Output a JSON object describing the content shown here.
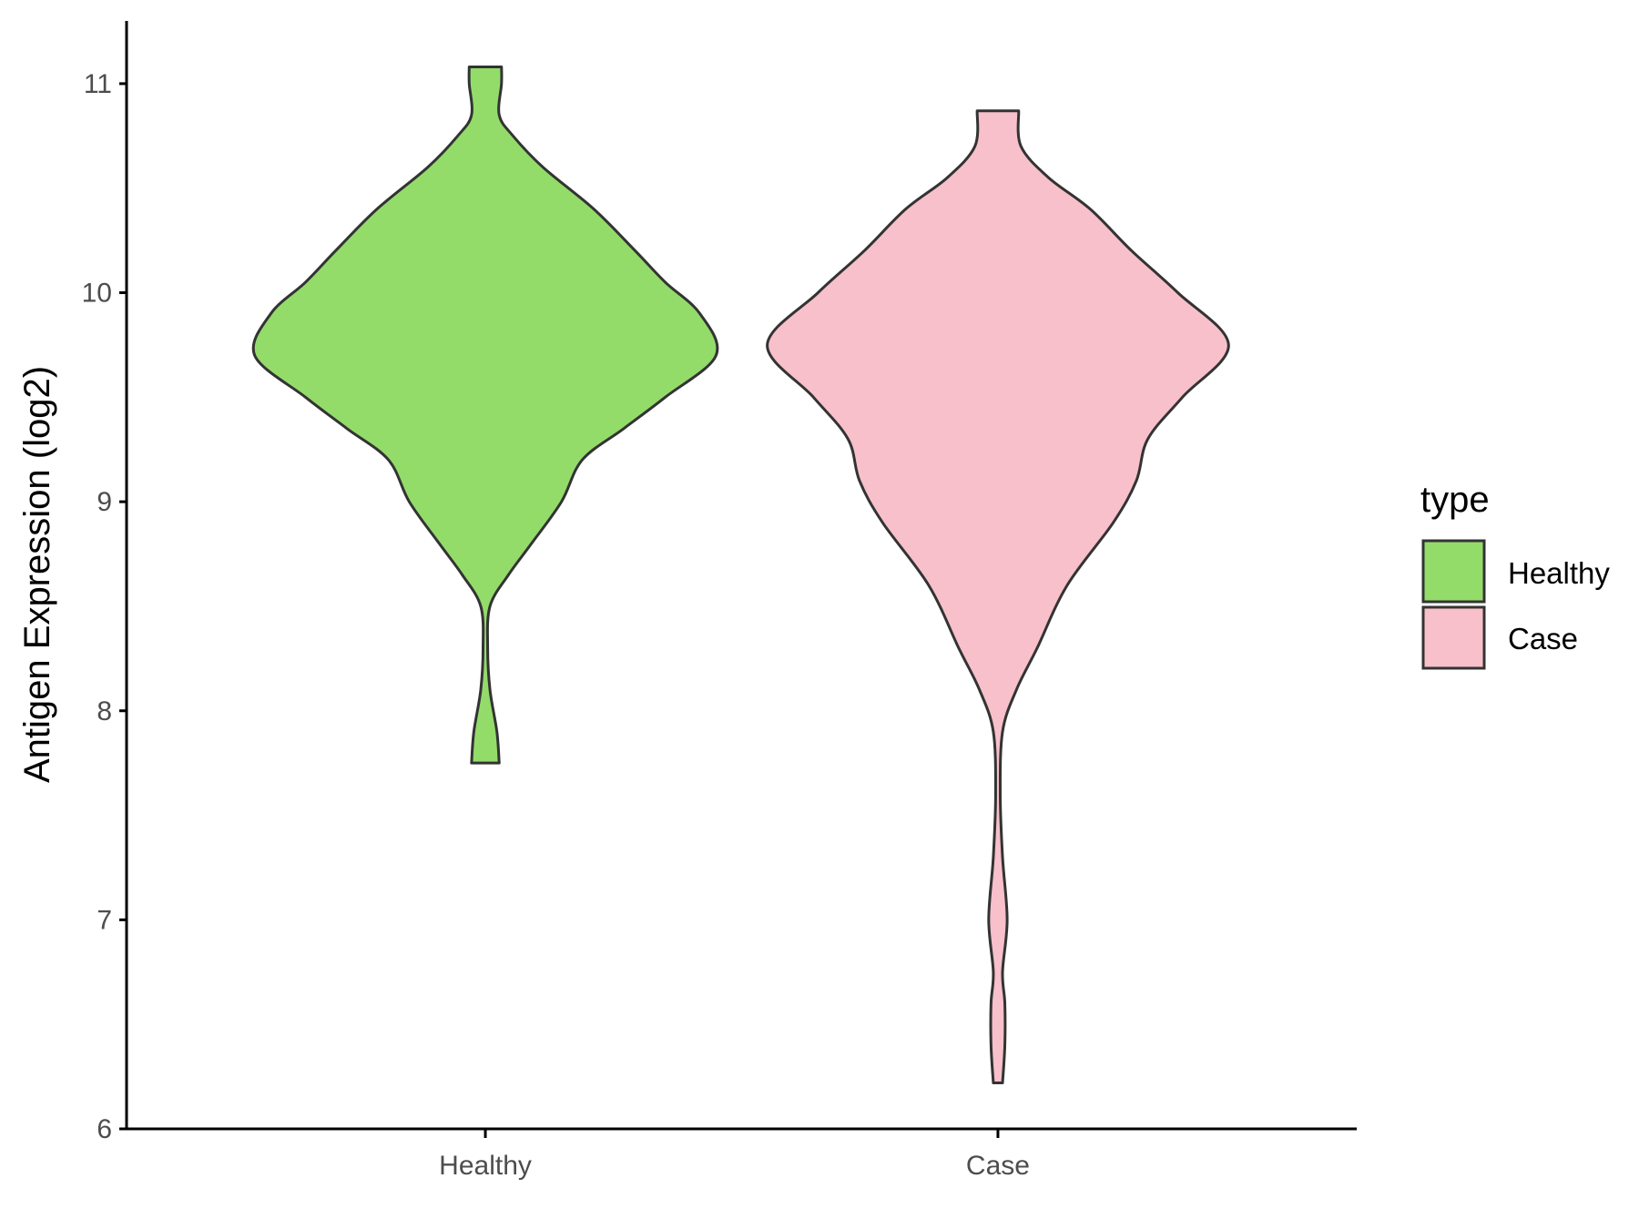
{
  "chart_data": {
    "type": "violin",
    "xlabel": "",
    "ylabel": "Antigen Expression (log2)",
    "ylim": [
      6,
      11.3
    ],
    "yticks": [
      "6",
      "7",
      "8",
      "9",
      "10",
      "11"
    ],
    "categories": [
      "Healthy",
      "Case"
    ],
    "grid": false,
    "legend": {
      "title": "type",
      "position": "right",
      "entries": [
        {
          "label": "Healthy",
          "color": "#93dc6a"
        },
        {
          "label": "Case",
          "color": "#f7c0cb"
        }
      ]
    },
    "series": [
      {
        "category": "Healthy",
        "color": "#93dc6a",
        "y_min": 7.75,
        "y_max": 11.08,
        "density_profile": [
          [
            7.75,
            0.06
          ],
          [
            7.9,
            0.05
          ],
          [
            8.1,
            0.02
          ],
          [
            8.3,
            0.01
          ],
          [
            8.5,
            0.02
          ],
          [
            8.65,
            0.1
          ],
          [
            8.8,
            0.2
          ],
          [
            9.0,
            0.33
          ],
          [
            9.2,
            0.42
          ],
          [
            9.35,
            0.6
          ],
          [
            9.5,
            0.78
          ],
          [
            9.7,
            1.0
          ],
          [
            9.9,
            0.93
          ],
          [
            10.05,
            0.78
          ],
          [
            10.2,
            0.65
          ],
          [
            10.4,
            0.47
          ],
          [
            10.6,
            0.25
          ],
          [
            10.75,
            0.12
          ],
          [
            10.85,
            0.06
          ],
          [
            11.0,
            0.07
          ],
          [
            11.08,
            0.07
          ]
        ]
      },
      {
        "category": "Case",
        "color": "#f7c0cb",
        "y_min": 6.22,
        "y_max": 10.87,
        "density_profile": [
          [
            6.22,
            0.02
          ],
          [
            6.4,
            0.03
          ],
          [
            6.6,
            0.03
          ],
          [
            6.75,
            0.02
          ],
          [
            7.0,
            0.04
          ],
          [
            7.3,
            0.02
          ],
          [
            7.6,
            0.01
          ],
          [
            7.9,
            0.02
          ],
          [
            8.1,
            0.08
          ],
          [
            8.3,
            0.17
          ],
          [
            8.6,
            0.3
          ],
          [
            8.9,
            0.5
          ],
          [
            9.1,
            0.6
          ],
          [
            9.3,
            0.65
          ],
          [
            9.5,
            0.8
          ],
          [
            9.75,
            1.0
          ],
          [
            10.0,
            0.78
          ],
          [
            10.2,
            0.58
          ],
          [
            10.4,
            0.4
          ],
          [
            10.55,
            0.22
          ],
          [
            10.7,
            0.1
          ],
          [
            10.87,
            0.09
          ]
        ]
      }
    ]
  }
}
